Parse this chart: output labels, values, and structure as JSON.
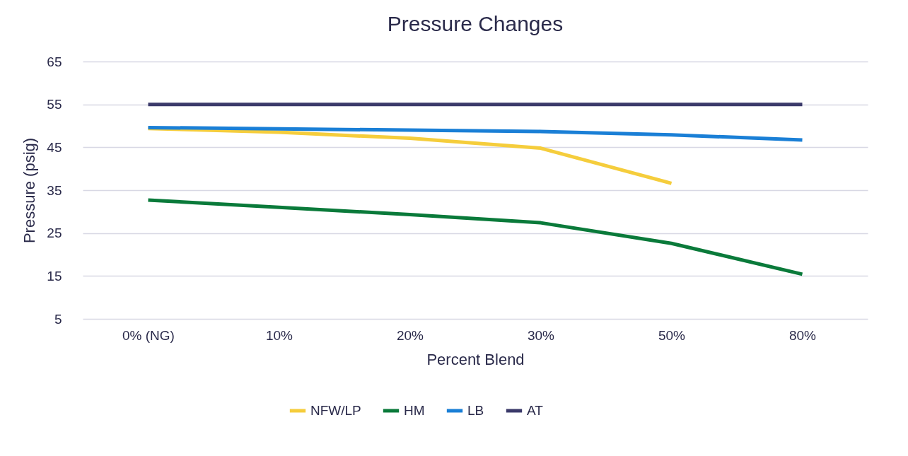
{
  "chart_data": {
    "type": "line",
    "title": "Pressure Changes",
    "xlabel": "Percent Blend",
    "ylabel": "Pressure (psig)",
    "categories": [
      "0% (NG)",
      "10%",
      "20%",
      "30%",
      "50%",
      "80%"
    ],
    "series": [
      {
        "name": "NFW/LP",
        "color": "#f5cd3c",
        "values": [
          49.4,
          48.5,
          47.1,
          44.8,
          36.6,
          null
        ]
      },
      {
        "name": "HM",
        "color": "#0a7a3a",
        "values": [
          32.7,
          31,
          29.3,
          27.4,
          22.6,
          15.4
        ]
      },
      {
        "name": "LB",
        "color": "#1a7fd6",
        "values": [
          49.6,
          49.3,
          49,
          48.7,
          47.9,
          46.7
        ]
      },
      {
        "name": "AT",
        "color": "#3b3a6a",
        "values": [
          55,
          55,
          55,
          55,
          55,
          55
        ]
      }
    ],
    "ylim": [
      5,
      65
    ],
    "yticks": [
      5,
      15,
      25,
      35,
      45,
      55,
      65
    ],
    "grid": "y",
    "legend": "bottom",
    "marker": "none",
    "line_style": "solid"
  }
}
